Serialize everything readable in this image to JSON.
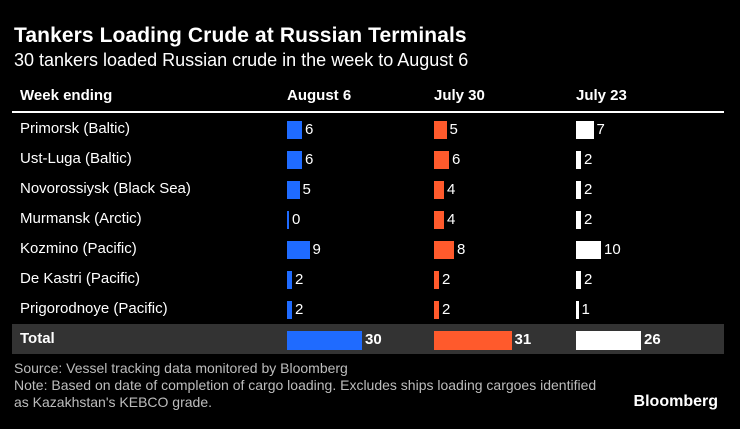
{
  "title": "Tankers Loading Crude at Russian Terminals",
  "subtitle": "30 tankers loaded Russian crude in the week to August 6",
  "source": "Source: Vessel tracking data monitored by Bloomberg",
  "note": "Note: Based on date of completion of cargo loading. Excludes ships loading cargoes identified as Kazakhstan's KEBCO grade.",
  "brand": "Bloomberg",
  "colors": {
    "august6": "#1f6bff",
    "july30": "#ff5a2c",
    "july23": "#ffffff",
    "total_row_bg": "#333333"
  },
  "chart_data": {
    "type": "table",
    "row_header": "Week ending",
    "columns": [
      "August 6",
      "July 30",
      "July 23"
    ],
    "rows": [
      {
        "label": "Primorsk (Baltic)",
        "values": [
          6,
          5,
          7
        ]
      },
      {
        "label": "Ust-Luga (Baltic)",
        "values": [
          6,
          6,
          2
        ]
      },
      {
        "label": "Novorossiysk (Black Sea)",
        "values": [
          5,
          4,
          2
        ]
      },
      {
        "label": "Murmansk (Arctic)",
        "values": [
          0,
          4,
          2
        ]
      },
      {
        "label": "Kozmino (Pacific)",
        "values": [
          9,
          8,
          10
        ]
      },
      {
        "label": "De Kastri (Pacific)",
        "values": [
          2,
          2,
          2
        ]
      },
      {
        "label": "Prigorodnoye (Pacific)",
        "values": [
          2,
          2,
          1
        ]
      }
    ],
    "total": {
      "label": "Total",
      "values": [
        30,
        31,
        26
      ]
    }
  }
}
